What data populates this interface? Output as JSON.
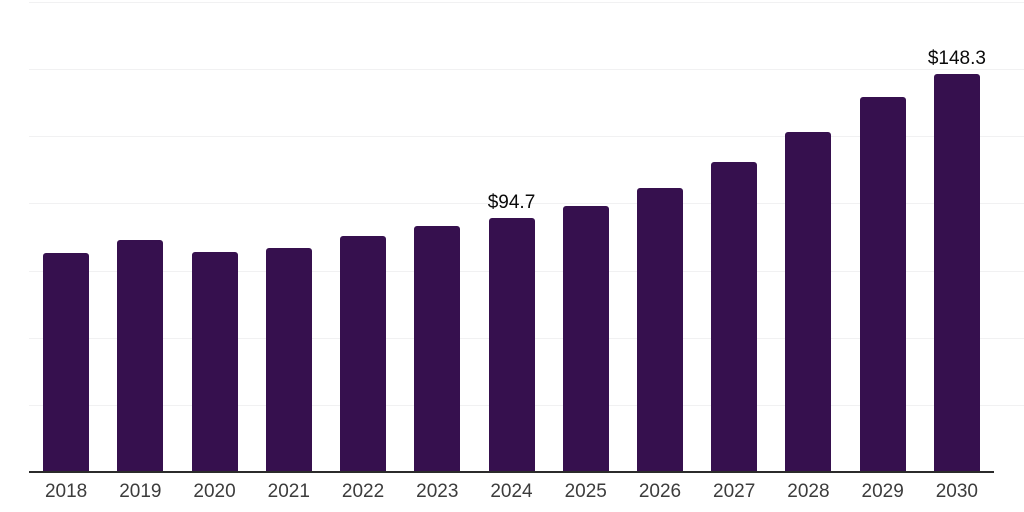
{
  "chart_data": {
    "type": "bar",
    "categories": [
      "2018",
      "2019",
      "2020",
      "2021",
      "2022",
      "2023",
      "2024",
      "2025",
      "2026",
      "2027",
      "2028",
      "2029",
      "2030"
    ],
    "values": [
      81.5,
      86.4,
      81.8,
      83.3,
      87.7,
      91.5,
      94.7,
      99.2,
      105.9,
      115.6,
      126.5,
      139.5,
      148.3
    ],
    "data_labels": [
      "",
      "",
      "",
      "",
      "",
      "",
      "$94.7",
      "",
      "",
      "",
      "",
      "",
      "$148.3"
    ],
    "xlabel": "",
    "ylabel": "",
    "ylim": [
      0,
      175
    ],
    "gridline_step": 25,
    "grid": true,
    "legend": "none",
    "y_axis_tick_labels_visible": false,
    "colors": {
      "bar": "#36104E",
      "gridline": "#F1F1F2",
      "axis_line": "#2B2B2B",
      "tick_label": "#3C3C3C",
      "value_label": "#0A0A0A",
      "background": "#FFFFFF"
    }
  }
}
